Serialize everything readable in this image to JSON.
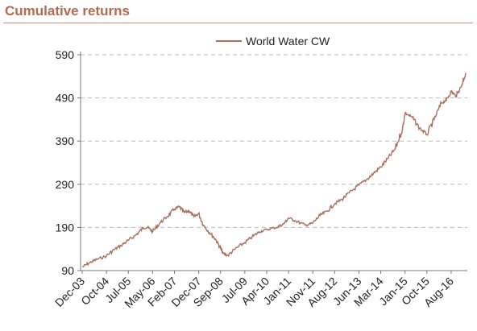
{
  "header": {
    "title": "Cumulative returns"
  },
  "colors": {
    "series": "#a8705e",
    "accent": "#b5694f",
    "grid": "#bdbdbd",
    "axis": "#777777"
  },
  "chart_data": {
    "type": "line",
    "title": "",
    "xlabel": "",
    "ylabel": "",
    "ylim": [
      90,
      590
    ],
    "y_ticks": [
      90,
      190,
      290,
      390,
      490,
      590
    ],
    "x_tick_labels": [
      "Dec-03",
      "Oct-04",
      "Jul-05",
      "May-06",
      "Feb-07",
      "Dec-07",
      "Sep-08",
      "Jul-09",
      "Apr-10",
      "Jan-11",
      "Nov-11",
      "Aug-12",
      "Jun-13",
      "Mar-14",
      "Jan-15",
      "Oct-15",
      "Aug-16"
    ],
    "grid": "horizontal dashed",
    "legend": "top-center",
    "series": [
      {
        "name": "World Water CW",
        "x": [
          "Dec-03",
          "Mar-04",
          "Jun-04",
          "Oct-04",
          "Jan-05",
          "Apr-05",
          "Jul-05",
          "Oct-05",
          "Jan-06",
          "Mar-06",
          "May-06",
          "Aug-06",
          "Nov-06",
          "Feb-07",
          "Apr-07",
          "Jun-07",
          "Aug-07",
          "Oct-07",
          "Dec-07",
          "Feb-08",
          "May-08",
          "Jul-08",
          "Sep-08",
          "Oct-08",
          "Dec-08",
          "Mar-09",
          "Jul-09",
          "Oct-09",
          "Jan-10",
          "Apr-10",
          "Aug-10",
          "Nov-10",
          "Jan-11",
          "Apr-11",
          "Aug-11",
          "Nov-11",
          "Feb-12",
          "May-12",
          "Aug-12",
          "Nov-12",
          "Feb-13",
          "Jun-13",
          "Sep-13",
          "Dec-13",
          "Mar-14",
          "Jun-14",
          "Sep-14",
          "Dec-14",
          "Jan-15",
          "Apr-15",
          "Jul-15",
          "Oct-15",
          "Jan-16",
          "Apr-16",
          "Jun-16",
          "Aug-16",
          "Oct-16",
          "Dec-16",
          "Feb-17"
        ],
        "values": [
          98,
          108,
          116,
          124,
          138,
          148,
          160,
          172,
          188,
          190,
          180,
          200,
          215,
          232,
          238,
          225,
          228,
          215,
          222,
          195,
          175,
          162,
          142,
          130,
          125,
          140,
          155,
          168,
          180,
          185,
          190,
          198,
          212,
          205,
          195,
          200,
          218,
          228,
          245,
          255,
          270,
          288,
          300,
          315,
          330,
          350,
          372,
          420,
          455,
          445,
          420,
          405,
          440,
          478,
          485,
          505,
          495,
          515,
          548
        ]
      }
    ]
  }
}
